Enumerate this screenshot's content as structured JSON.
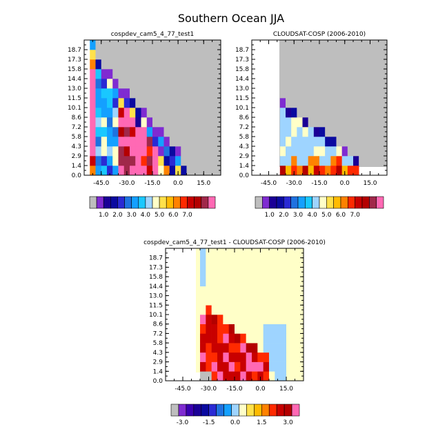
{
  "figure": {
    "title": "Southern Ocean JJA",
    "colors": {
      "gray": "#bebebe",
      "pink": "#ff69b4",
      "white": "#ffffff",
      "frame": "#000000"
    }
  },
  "chart_data": [
    {
      "type": "heatmap",
      "title": "cospdev_cam5_4_77_test1",
      "xlabel": "",
      "ylabel": "",
      "x_ticks": [
        "-45.0",
        "-30.0",
        "-15.0",
        "0.0",
        "15.0"
      ],
      "y_ticks": [
        "0.0",
        "1.4",
        "2.9",
        "4.3",
        "5.8",
        "7.2",
        "8.6",
        "10.1",
        "11.5",
        "13.0",
        "14.4",
        "15.8",
        "17.3",
        "18.7"
      ],
      "colorbar_labels": [
        "1.0",
        "2.0",
        "3.0",
        "4.0",
        "5.0",
        "6.0",
        "7.0"
      ],
      "missing_value_color": "gray",
      "filled_region": "triangular wedge below the gray missing-data area, high values (pink) along the lower left"
    },
    {
      "type": "heatmap",
      "title": "CLOUDSAT-COSP (2006-2010)",
      "xlabel": "",
      "ylabel": "",
      "x_ticks": [
        "-45.0",
        "-30.0",
        "-15.0",
        "0.0",
        "15.0"
      ],
      "y_ticks": [
        "0.0",
        "1.4",
        "2.9",
        "4.3",
        "5.8",
        "7.2",
        "8.6",
        "10.1",
        "11.5",
        "13.0",
        "14.4",
        "15.8",
        "17.3",
        "18.7"
      ],
      "colorbar_labels": [
        "1.0",
        "2.0",
        "3.0",
        "4.0",
        "5.0",
        "6.0",
        "7.0"
      ],
      "missing_value_color": "gray",
      "filled_region": "wedge with mostly light-blue and pale values, reds in the bottom row"
    },
    {
      "type": "heatmap",
      "title": "cospdev_cam5_4_77_test1 - CLOUDSAT-COSP (2006-2010)",
      "xlabel": "",
      "ylabel": "",
      "x_ticks": [
        "-45.0",
        "-30.0",
        "-15.0",
        "0.0",
        "15.0"
      ],
      "y_ticks": [
        "0.0",
        "1.4",
        "2.9",
        "4.3",
        "5.8",
        "7.2",
        "8.6",
        "10.1",
        "11.5",
        "13.0",
        "14.4",
        "15.8",
        "17.3",
        "18.7"
      ],
      "colorbar_labels": [
        "-3.0",
        "-1.5",
        "0.0",
        "1.5",
        "3.0"
      ],
      "filled_region": "difference field: near-zero pale yellow aloft, positive reds/pinks in the lower left wedge"
    }
  ]
}
